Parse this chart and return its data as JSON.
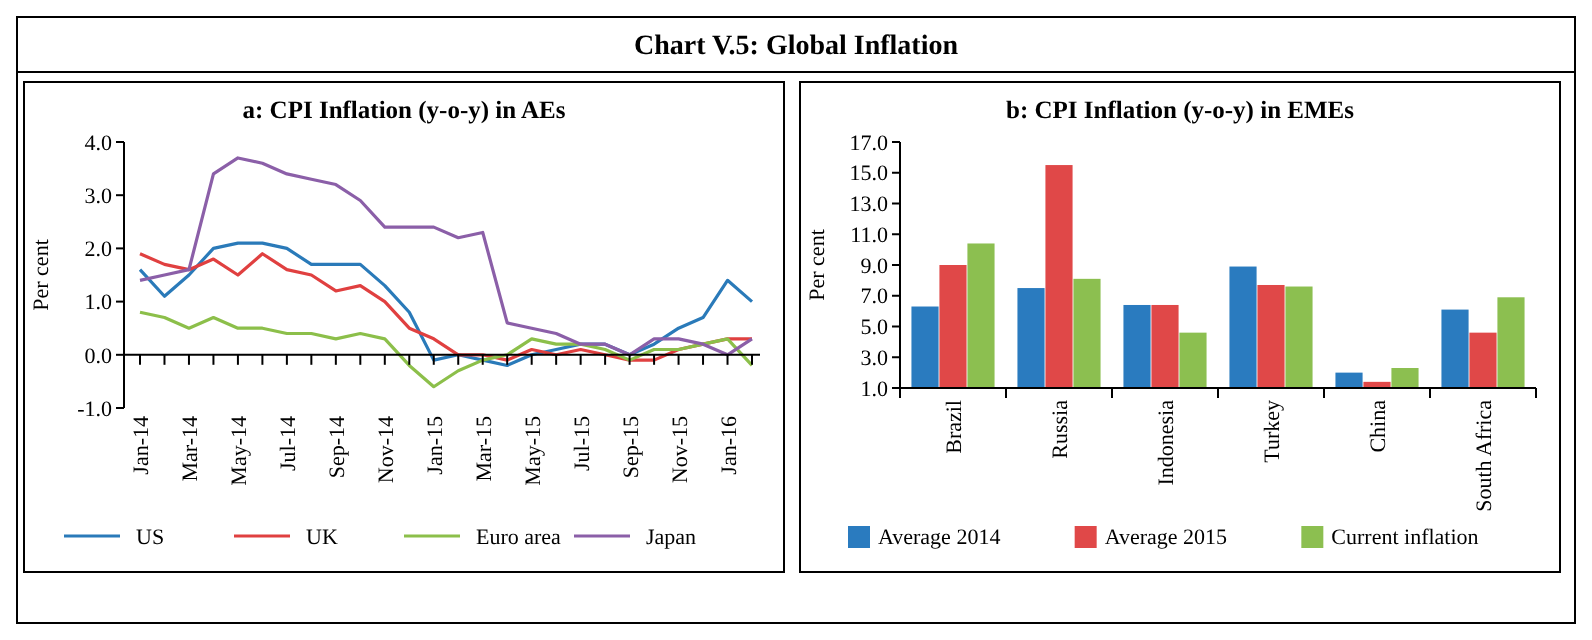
{
  "chart_data": [
    {
      "type": "line",
      "title": "a: CPI Inflation (y-o-y) in AEs",
      "ylabel": "Per cent",
      "annotations": [
        "Chart V.5: Global Inflation"
      ],
      "categories": [
        "Jan-14",
        null,
        "Mar-14",
        null,
        "May-14",
        null,
        "Jul-14",
        null,
        "Sep-14",
        null,
        "Nov-14",
        null,
        "Jan-15",
        null,
        "Mar-15",
        null,
        "May-15",
        null,
        "Jul-15",
        null,
        "Sep-15",
        null,
        "Nov-15",
        null,
        "Jan-16",
        null
      ],
      "series": [
        {
          "name": "US",
          "color": "#2a7ab9",
          "values": [
            1.6,
            1.1,
            1.5,
            2.0,
            2.1,
            2.1,
            2.0,
            1.7,
            1.7,
            1.7,
            1.3,
            0.8,
            -0.1,
            0.0,
            -0.1,
            -0.2,
            0.0,
            0.1,
            0.2,
            0.2,
            0.0,
            0.2,
            0.5,
            0.7,
            1.4,
            1.0
          ]
        },
        {
          "name": "UK",
          "color": "#e04040",
          "values": [
            1.9,
            1.7,
            1.6,
            1.8,
            1.5,
            1.9,
            1.6,
            1.5,
            1.2,
            1.3,
            1.0,
            0.5,
            0.3,
            0.0,
            0.0,
            -0.1,
            0.1,
            0.0,
            0.1,
            0.0,
            -0.1,
            -0.1,
            0.1,
            0.2,
            0.3,
            0.3
          ]
        },
        {
          "name": "Euro area",
          "color": "#8cbf4a",
          "values": [
            0.8,
            0.7,
            0.5,
            0.7,
            0.5,
            0.5,
            0.4,
            0.4,
            0.3,
            0.4,
            0.3,
            -0.2,
            -0.6,
            -0.3,
            -0.1,
            0.0,
            0.3,
            0.2,
            0.2,
            0.1,
            -0.1,
            0.1,
            0.1,
            0.2,
            0.3,
            -0.2
          ]
        },
        {
          "name": "Japan",
          "color": "#8b5fa8",
          "values": [
            1.4,
            1.5,
            1.6,
            3.4,
            3.7,
            3.6,
            3.4,
            3.3,
            3.2,
            2.9,
            2.4,
            2.4,
            2.4,
            2.2,
            2.3,
            0.6,
            0.5,
            0.4,
            0.2,
            0.2,
            0.0,
            0.3,
            0.3,
            0.2,
            0.0,
            0.3
          ]
        }
      ],
      "ylim": [
        -1,
        4
      ],
      "yticks": [
        {
          "value": -1,
          "label": "-1.0"
        },
        {
          "value": 0,
          "label": "0.0"
        },
        {
          "value": 1,
          "label": "1.0"
        },
        {
          "value": 2,
          "label": "2.0"
        },
        {
          "value": 3,
          "label": "3.0"
        },
        {
          "value": 4,
          "label": "4.0"
        }
      ],
      "legend": "bottom",
      "marker": "none",
      "line_style": "solid"
    },
    {
      "type": "bar",
      "title": "b: CPI Inflation (y-o-y) in EMEs",
      "ylabel": "Per cent",
      "categories": [
        "Brazil",
        "Russia",
        "Indonesia",
        "Turkey",
        "China",
        "South Africa"
      ],
      "series": [
        {
          "name": "Average 2014",
          "color": "#2a7bbf",
          "values": [
            6.3,
            7.5,
            6.4,
            8.9,
            2.0,
            6.1
          ]
        },
        {
          "name": "Average 2015",
          "color": "#e04848",
          "values": [
            9.0,
            15.5,
            6.4,
            7.7,
            1.4,
            4.6
          ]
        },
        {
          "name": "Current inflation",
          "color": "#8cbf50",
          "values": [
            10.4,
            8.1,
            4.6,
            7.6,
            2.3,
            6.9
          ]
        }
      ],
      "ylim": [
        1,
        17
      ],
      "yticks": [
        {
          "value": 1,
          "label": "1.0"
        },
        {
          "value": 3,
          "label": "3.0"
        },
        {
          "value": 5,
          "label": "5.0"
        },
        {
          "value": 7,
          "label": "7.0"
        },
        {
          "value": 9,
          "label": "9.0"
        },
        {
          "value": 11,
          "label": "11.0"
        },
        {
          "value": 13,
          "label": "13.0"
        },
        {
          "value": 15,
          "label": "15.0"
        },
        {
          "value": 17,
          "label": "17.0"
        }
      ],
      "legend": "bottom"
    }
  ]
}
